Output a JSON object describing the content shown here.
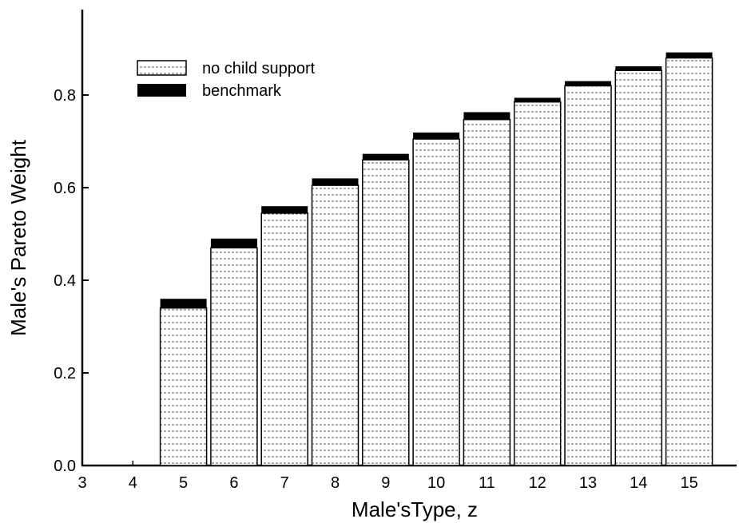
{
  "chart_data": {
    "type": "bar",
    "xlabel": "Male'sType, z",
    "ylabel": "Male's Pareto Weight",
    "x_ticks": [
      "3",
      "4",
      "5",
      "6",
      "7",
      "8",
      "9",
      "10",
      "11",
      "12",
      "13",
      "14",
      "15"
    ],
    "xlim": [
      3,
      15
    ],
    "y_ticks": [
      "0.0",
      "0.2",
      "0.4",
      "0.6",
      "0.8"
    ],
    "ylim": [
      0,
      0.9
    ],
    "grid": false,
    "legend_position": "top-left",
    "categories": [
      "5",
      "6",
      "7",
      "8",
      "9",
      "10",
      "11",
      "12",
      "13",
      "14",
      "15"
    ],
    "series": [
      {
        "name": "no child support",
        "style": "dotted-hatch",
        "color": "#ffffff",
        "values": [
          0.34,
          0.47,
          0.545,
          0.605,
          0.66,
          0.705,
          0.747,
          0.785,
          0.82,
          0.853,
          0.88
        ]
      },
      {
        "name": "benchmark",
        "style": "solid",
        "color": "#000000",
        "values": [
          0.36,
          0.49,
          0.56,
          0.62,
          0.673,
          0.719,
          0.763,
          0.794,
          0.83,
          0.862,
          0.892
        ]
      }
    ]
  }
}
